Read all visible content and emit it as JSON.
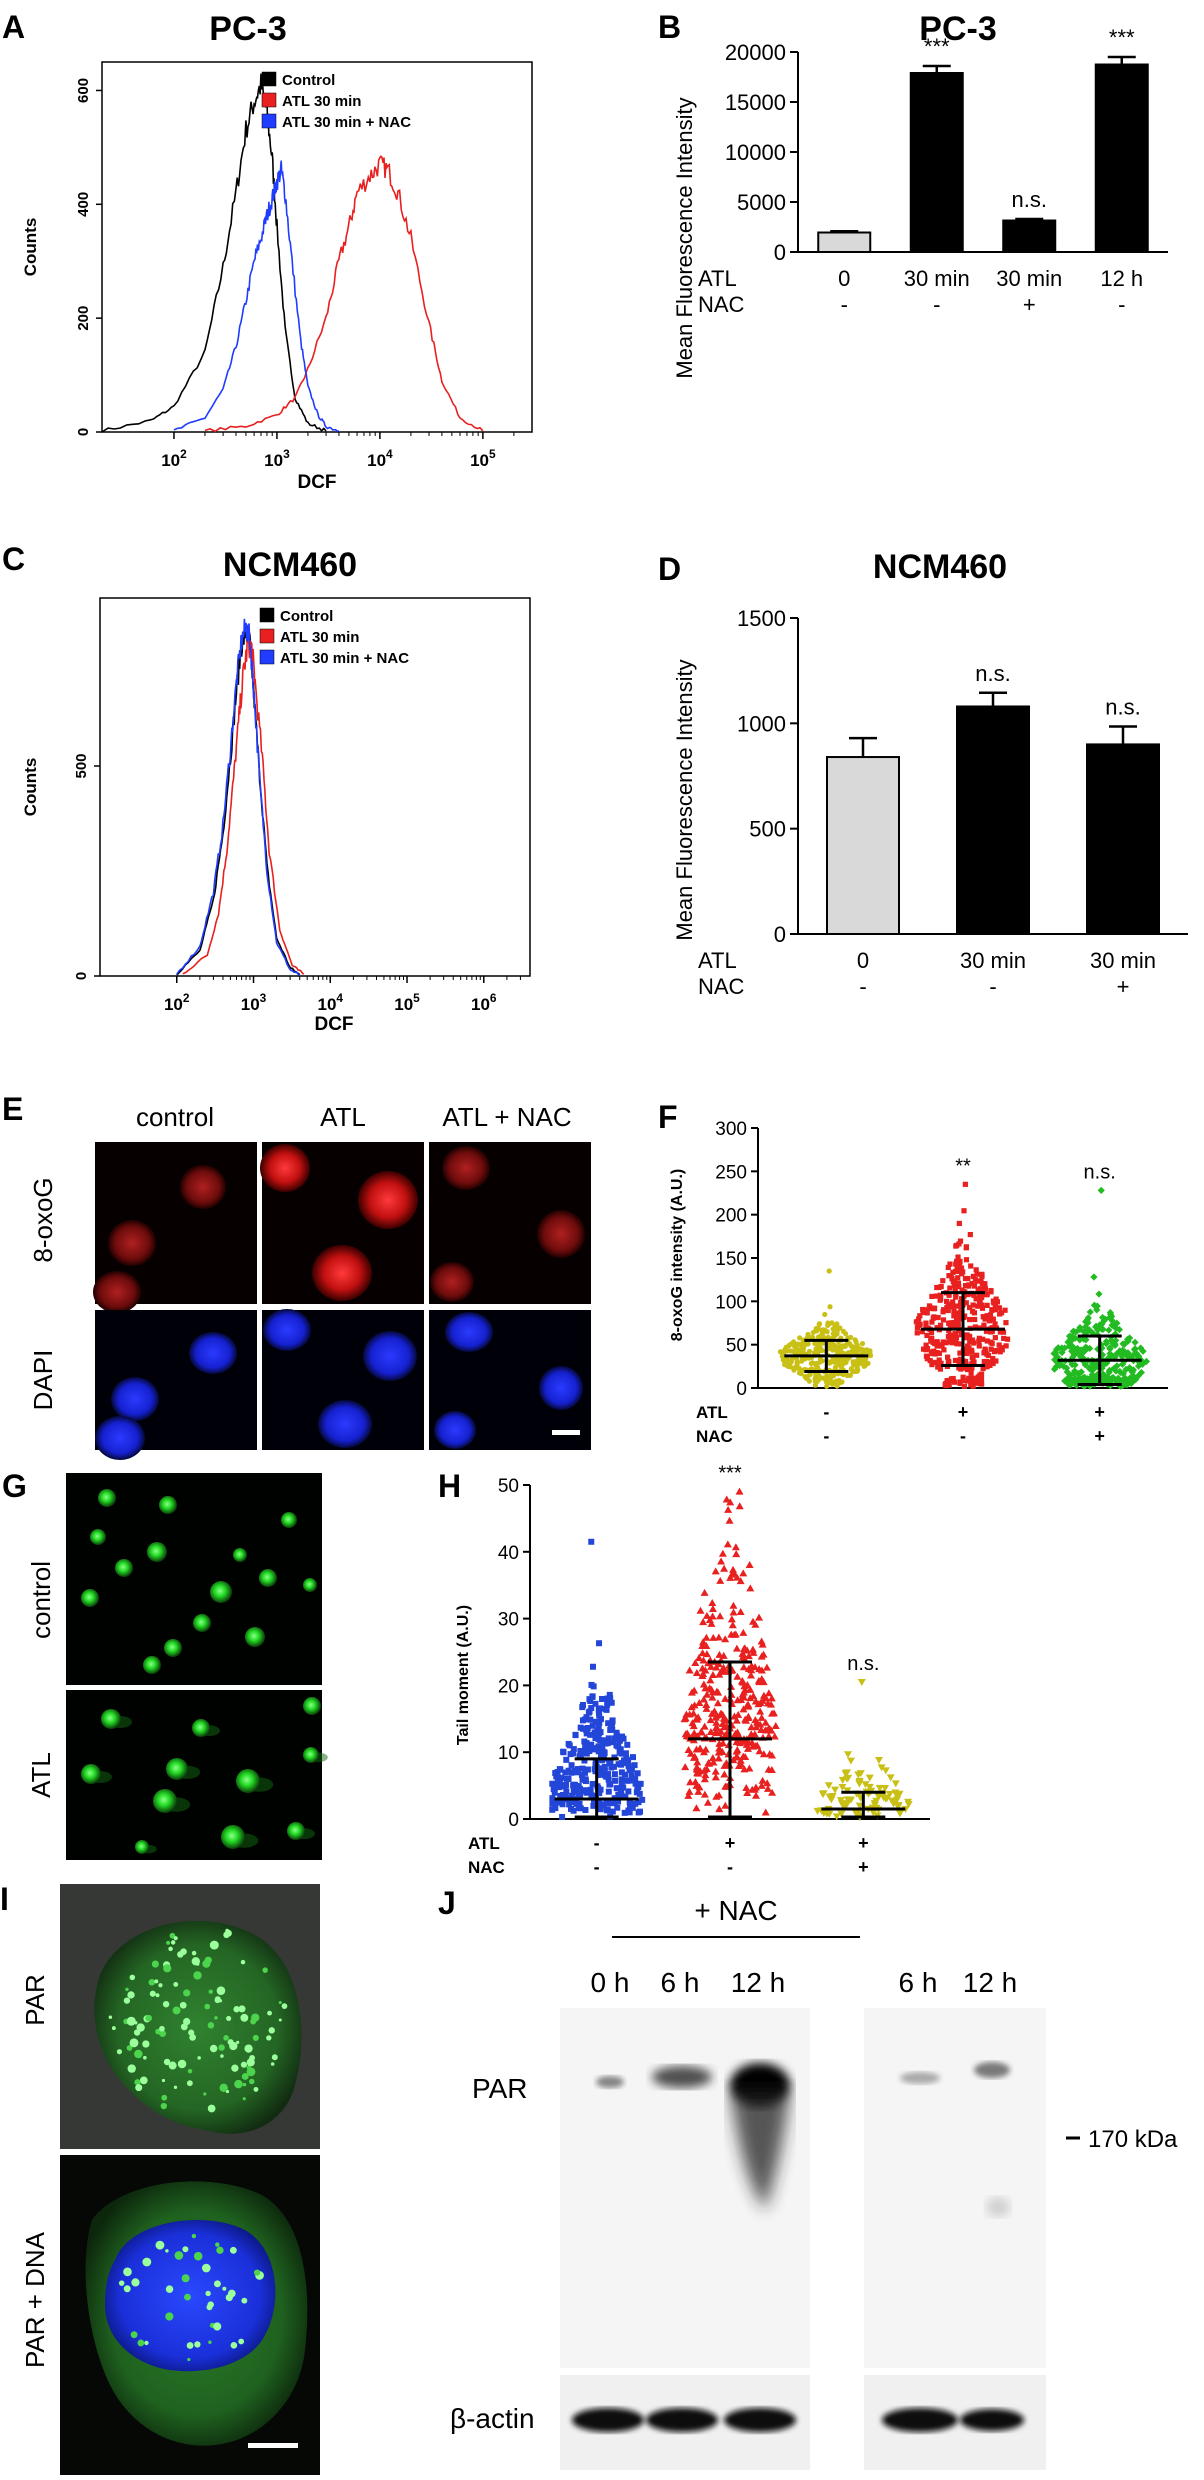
{
  "panels": {
    "A": {
      "letter": "A",
      "chart_data": {
        "type": "histogram",
        "title": "PC-3",
        "xlabel": "DCF",
        "ylabel": "Counts",
        "x_scale": "log",
        "xlim": [
          20,
          300000
        ],
        "ylim": [
          0,
          650
        ],
        "x_ticks": [
          "10^2",
          "10^3",
          "10^4",
          "10^5"
        ],
        "y_ticks": [
          0,
          200,
          400,
          600
        ],
        "legend": [
          "Control",
          "ATL 30 min",
          "ATL 30 min + NAC"
        ],
        "legend_position": "top-right",
        "series": [
          {
            "name": "Control",
            "color": "#000000",
            "x": [
              20,
              60,
              100,
              200,
              300,
              400,
              500,
              600,
              700,
              800,
              900,
              1000,
              1200,
              1500,
              2000,
              3000
            ],
            "y": [
              2,
              20,
              45,
              140,
              290,
              420,
              530,
              580,
              610,
              560,
              480,
              360,
              180,
              60,
              15,
              2
            ]
          },
          {
            "name": "ATL 30 min",
            "color": "#e8201f",
            "x": [
              200,
              500,
              1000,
              1500,
              2000,
              3000,
              4000,
              5000,
              6000,
              8000,
              10000,
              12000,
              15000,
              20000,
              30000,
              40000,
              60000,
              100000
            ],
            "y": [
              2,
              10,
              30,
              60,
              110,
              200,
              300,
              360,
              420,
              450,
              470,
              460,
              420,
              340,
              190,
              90,
              25,
              2
            ]
          },
          {
            "name": "ATL 30 min + NAC",
            "color": "#1f3cff",
            "x": [
              100,
              200,
              300,
              400,
              500,
              600,
              700,
              800,
              900,
              1000,
              1100,
              1200,
              1400,
              1700,
              2000,
              2500,
              3000,
              4000
            ],
            "y": [
              2,
              25,
              75,
              150,
              230,
              300,
              340,
              380,
              410,
              440,
              460,
              420,
              300,
              160,
              80,
              30,
              10,
              2
            ]
          }
        ]
      }
    },
    "B": {
      "letter": "B",
      "chart_data": {
        "type": "bar",
        "title": "PC-3",
        "ylabel": "Mean Fluorescence Intensity",
        "ylim": [
          0,
          20000
        ],
        "y_ticks": [
          0,
          5000,
          10000,
          15000,
          20000
        ],
        "categories": [
          "0",
          "30 min",
          "30 min",
          "12 h"
        ],
        "row_labels": [
          "ATL",
          "NAC"
        ],
        "nac": [
          "-",
          "-",
          "+",
          "-"
        ],
        "values": [
          1950,
          17900,
          3150,
          18750
        ],
        "errors": [
          120,
          700,
          150,
          750
        ],
        "annotations": [
          "",
          "***",
          "n.s.",
          "***"
        ],
        "colors": [
          "#d9d9d9",
          "#000000",
          "#000000",
          "#000000"
        ]
      }
    },
    "C": {
      "letter": "C",
      "chart_data": {
        "type": "histogram",
        "title": "NCM460",
        "xlabel": "DCF",
        "ylabel": "Counts",
        "x_scale": "log",
        "xlim": [
          10,
          4000000
        ],
        "ylim": [
          0,
          900
        ],
        "x_ticks": [
          "10^2",
          "10^3",
          "10^4",
          "10^5",
          "10^6"
        ],
        "y_ticks": [
          0,
          500
        ],
        "legend": [
          "Control",
          "ATL 30 min",
          "ATL 30 min + NAC"
        ],
        "legend_position": "top-right",
        "series": [
          {
            "name": "Control",
            "color": "#000000",
            "x": [
              100,
              200,
              300,
              400,
              500,
              600,
              700,
              800,
              900,
              1000,
              1200,
              1500,
              2000,
              3000,
              4000
            ],
            "y": [
              5,
              60,
              180,
              340,
              520,
              680,
              790,
              820,
              790,
              680,
              480,
              260,
              90,
              20,
              3
            ]
          },
          {
            "name": "ATL 30 min",
            "color": "#e8201f",
            "x": [
              120,
              250,
              350,
              450,
              550,
              650,
              750,
              850,
              950,
              1050,
              1300,
              1600,
              2200,
              3200,
              4500
            ],
            "y": [
              5,
              50,
              150,
              300,
              470,
              620,
              730,
              790,
              780,
              700,
              520,
              300,
              110,
              25,
              4
            ]
          },
          {
            "name": "ATL 30 min + NAC",
            "color": "#1f3cff",
            "x": [
              100,
              200,
              300,
              400,
              500,
              600,
              700,
              800,
              900,
              1000,
              1200,
              1500,
              2000,
              3000,
              4000
            ],
            "y": [
              5,
              70,
              200,
              360,
              540,
              700,
              800,
              830,
              800,
              690,
              470,
              250,
              80,
              15,
              2
            ]
          }
        ]
      }
    },
    "D": {
      "letter": "D",
      "chart_data": {
        "type": "bar",
        "title": "NCM460",
        "ylabel": "Mean Fluorescence Intensity",
        "ylim": [
          0,
          1500
        ],
        "y_ticks": [
          0,
          500,
          1000,
          1500
        ],
        "categories": [
          "0",
          "30 min",
          "30 min"
        ],
        "row_labels": [
          "ATL",
          "NAC"
        ],
        "nac": [
          "-",
          "-",
          "+"
        ],
        "values": [
          840,
          1080,
          900
        ],
        "errors": [
          90,
          65,
          85
        ],
        "annotations": [
          "",
          "n.s.",
          "n.s."
        ],
        "colors": [
          "#d9d9d9",
          "#000000",
          "#000000"
        ]
      }
    },
    "E": {
      "letter": "E",
      "columns": [
        "control",
        "ATL",
        "ATL + NAC"
      ],
      "rows": [
        "8-oxoG",
        "DAPI"
      ]
    },
    "F": {
      "letter": "F",
      "chart_data": {
        "type": "scatter",
        "ylabel": "8-oxoG intensity (A.U.)",
        "ylim": [
          0,
          300
        ],
        "y_ticks": [
          0,
          50,
          100,
          150,
          200,
          250,
          300
        ],
        "row_labels": [
          "ATL",
          "NAC"
        ],
        "atl": [
          "-",
          "+",
          "+"
        ],
        "nac": [
          "-",
          "-",
          "+"
        ],
        "annotations": [
          "",
          "**",
          "n.s."
        ],
        "groups": [
          {
            "color": "#c8c015",
            "marker": "circle",
            "mean": 37,
            "sd": 18,
            "max": 135,
            "n": 320
          },
          {
            "color": "#e8201f",
            "marker": "square",
            "mean": 68,
            "sd": 42,
            "max": 235,
            "n": 380
          },
          {
            "color": "#22bb22",
            "marker": "diamond",
            "mean": 32,
            "sd": 28,
            "max": 228,
            "n": 320
          }
        ]
      }
    },
    "G": {
      "letter": "G",
      "rows": [
        "control",
        "ATL"
      ]
    },
    "H": {
      "letter": "H",
      "chart_data": {
        "type": "scatter",
        "ylabel": "Tail moment (A.U.)",
        "ylim": [
          0,
          50
        ],
        "y_ticks": [
          0,
          10,
          20,
          30,
          40,
          50
        ],
        "row_labels": [
          "ATL",
          "NAC"
        ],
        "atl": [
          "-",
          "+",
          "+"
        ],
        "nac": [
          "-",
          "-",
          "+"
        ],
        "annotations": [
          "",
          "***",
          "n.s."
        ],
        "groups": [
          {
            "color": "#2346d8",
            "marker": "square",
            "mean": 3,
            "mean_upper": 9,
            "max": 41.5,
            "n": 320
          },
          {
            "color": "#e8201f",
            "marker": "triangle",
            "mean": 12,
            "mean_upper": 23.5,
            "max": 49,
            "n": 360
          },
          {
            "color": "#c8c015",
            "marker": "triangle-down",
            "mean": 1.5,
            "mean_upper": 4,
            "max": 20.5,
            "n": 90
          }
        ]
      }
    },
    "I": {
      "letter": "I",
      "rows": [
        "PAR",
        "PAR + DNA"
      ]
    },
    "J": {
      "letter": "J",
      "lanes": [
        "0 h",
        "6 h",
        "12 h",
        "6 h",
        "12 h"
      ],
      "nac_label": "+ NAC",
      "row_labels": [
        "PAR",
        "β-actin"
      ],
      "marker": "170 kDa"
    }
  }
}
